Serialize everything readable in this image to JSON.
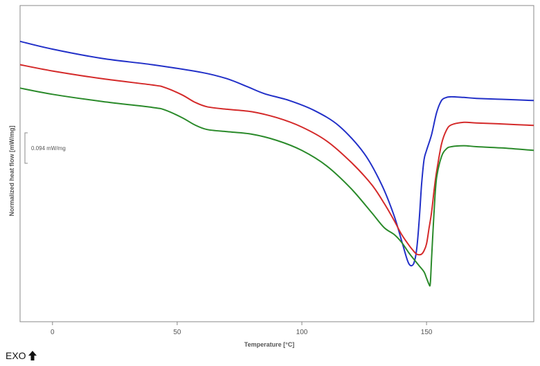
{
  "chart_data": {
    "type": "line",
    "xlabel": "Temperature [°C]",
    "ylabel": "Normalized heat flow [mW/mg]",
    "xlim": [
      -13,
      193
    ],
    "xticks": [
      0,
      50,
      100,
      150
    ],
    "ylim": [
      -0.9,
      0.115
    ],
    "grid": false,
    "scale_bar": {
      "value": 0.094,
      "label": "0.094 mW/mg"
    },
    "exo_label": "EXO",
    "series": [
      {
        "color": "#2230c8",
        "x": [
          -13,
          0,
          20,
          40,
          60,
          70,
          78,
          85,
          95,
          105,
          115,
          125,
          132,
          137,
          140,
          142,
          143,
          144,
          145,
          146,
          147,
          148,
          149,
          150,
          152,
          154,
          156,
          158,
          160,
          165,
          170,
          180,
          193
        ],
        "y": [
          0.0,
          -0.025,
          -0.055,
          -0.075,
          -0.1,
          -0.12,
          -0.145,
          -0.168,
          -0.19,
          -0.222,
          -0.272,
          -0.36,
          -0.46,
          -0.56,
          -0.64,
          -0.695,
          -0.715,
          -0.72,
          -0.71,
          -0.67,
          -0.58,
          -0.46,
          -0.38,
          -0.35,
          -0.3,
          -0.23,
          -0.19,
          -0.18,
          -0.178,
          -0.18,
          -0.183,
          -0.186,
          -0.19
        ]
      },
      {
        "color": "#d42a2a",
        "x": [
          -13,
          0,
          20,
          40,
          45,
          52,
          57,
          62,
          70,
          80,
          90,
          100,
          110,
          120,
          128,
          133,
          137,
          140,
          143,
          145,
          146,
          147,
          148,
          149,
          150,
          151,
          152,
          153,
          154,
          156,
          158,
          160,
          165,
          170,
          180,
          193
        ],
        "y": [
          -0.075,
          -0.095,
          -0.12,
          -0.14,
          -0.148,
          -0.172,
          -0.195,
          -0.21,
          -0.218,
          -0.226,
          -0.245,
          -0.275,
          -0.32,
          -0.39,
          -0.46,
          -0.52,
          -0.575,
          -0.62,
          -0.655,
          -0.675,
          -0.683,
          -0.685,
          -0.683,
          -0.672,
          -0.65,
          -0.6,
          -0.55,
          -0.48,
          -0.42,
          -0.33,
          -0.285,
          -0.268,
          -0.26,
          -0.262,
          -0.265,
          -0.27
        ]
      },
      {
        "color": "#2a8a2a",
        "x": [
          -13,
          0,
          20,
          40,
          45,
          52,
          57,
          62,
          70,
          80,
          90,
          100,
          110,
          120,
          128,
          133,
          137,
          140,
          143,
          145,
          147,
          149,
          150,
          151,
          151.5,
          152,
          153,
          154,
          156,
          158,
          160,
          165,
          170,
          180,
          193
        ],
        "y": [
          -0.15,
          -0.17,
          -0.193,
          -0.212,
          -0.22,
          -0.245,
          -0.268,
          -0.283,
          -0.29,
          -0.298,
          -0.318,
          -0.35,
          -0.4,
          -0.475,
          -0.55,
          -0.598,
          -0.62,
          -0.645,
          -0.68,
          -0.7,
          -0.72,
          -0.74,
          -0.76,
          -0.78,
          -0.778,
          -0.7,
          -0.55,
          -0.44,
          -0.37,
          -0.345,
          -0.338,
          -0.335,
          -0.338,
          -0.342,
          -0.35
        ]
      }
    ]
  }
}
